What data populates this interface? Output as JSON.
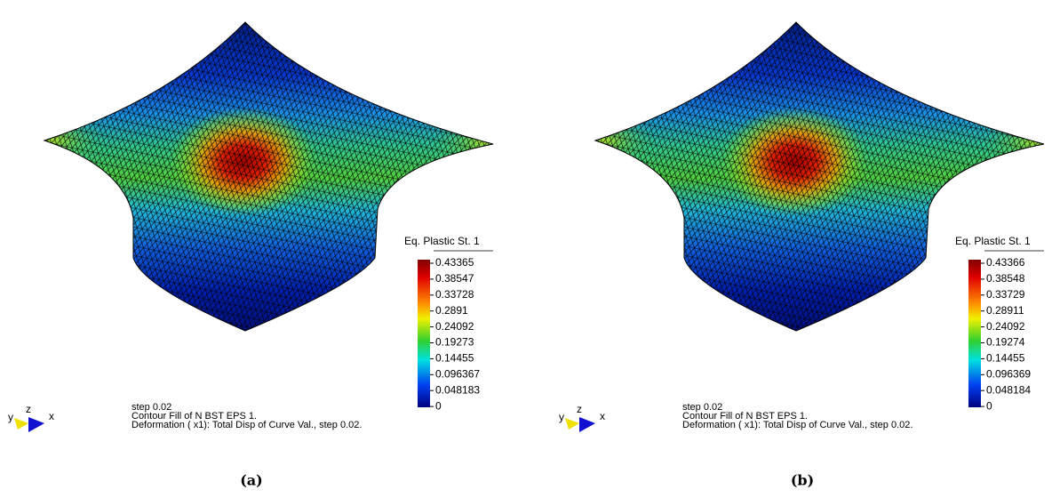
{
  "panels": [
    {
      "legend_title": "Eq. Plastic St. 1",
      "ticks": [
        "0.43365",
        "0.38547",
        "0.33728",
        "0.2891",
        "0.24092",
        "0.19273",
        "0.14455",
        "0.096367",
        "0.048183",
        "0"
      ],
      "axes": {
        "y": "y",
        "z": "z",
        "x": "x"
      },
      "info": [
        "step 0.02",
        "Contour Fill of N BST EPS 1.",
        "Deformation ( x1): Total Disp of Curve Val., step 0.02."
      ],
      "caption": "(a)"
    },
    {
      "legend_title": "Eq. Plastic St. 1",
      "ticks": [
        "0.43366",
        "0.38548",
        "0.33729",
        "0.28911",
        "0.24092",
        "0.19274",
        "0.14455",
        "0.096369",
        "0.048184",
        "0"
      ],
      "axes": {
        "y": "y",
        "z": "z",
        "x": "x"
      },
      "info": [
        "step 0.02",
        "Contour Fill of N BST EPS 1.",
        "Deformation ( x1): Total Disp of Curve Val., step 0.02."
      ],
      "caption": "(b)"
    }
  ]
}
